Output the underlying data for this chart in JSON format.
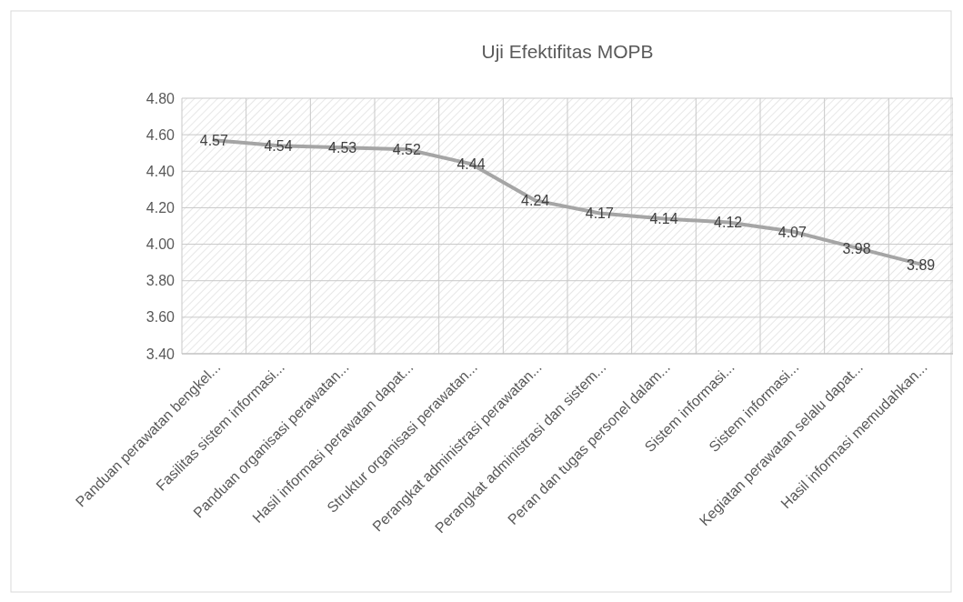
{
  "chart_data": {
    "type": "line",
    "title": "Uji Efektifitas MOPB",
    "categories": [
      "Panduan perawatan bengkel...",
      "Fasilitas sistem informasi...",
      "Panduan organisasi perawatan...",
      "Hasil informasi perawatan dapat...",
      "Struktur organisasi perawatan...",
      "Perangkat administrasi perawatan...",
      "Perangkat administrasi dan sistem...",
      "Peran dan tugas personel dalam...",
      "Sistem informasi...",
      "Sistem informasi...",
      "Kegiatan perawatan selalu dapat...",
      "Hasil informasi memudahkan..."
    ],
    "series": [
      {
        "color": "#a5a5a5",
        "values": [
          4.57,
          4.54,
          4.53,
          4.52,
          4.44,
          4.24,
          4.17,
          4.14,
          4.12,
          4.07,
          3.98,
          3.89
        ]
      }
    ],
    "ylim": [
      3.4,
      4.8
    ],
    "yticks": [
      {
        "value": 3.4,
        "label": "3.40"
      },
      {
        "value": 3.6,
        "label": "3.60"
      },
      {
        "value": 3.8,
        "label": "3.80"
      },
      {
        "value": 4.0,
        "label": "4.00"
      },
      {
        "value": 4.2,
        "label": "4.20"
      },
      {
        "value": 4.4,
        "label": "4.40"
      },
      {
        "value": 4.6,
        "label": "4.60"
      },
      {
        "value": 4.8,
        "label": "4.80"
      }
    ],
    "grid": true,
    "data_labels": true,
    "marker": "none",
    "line_style": "solid"
  }
}
